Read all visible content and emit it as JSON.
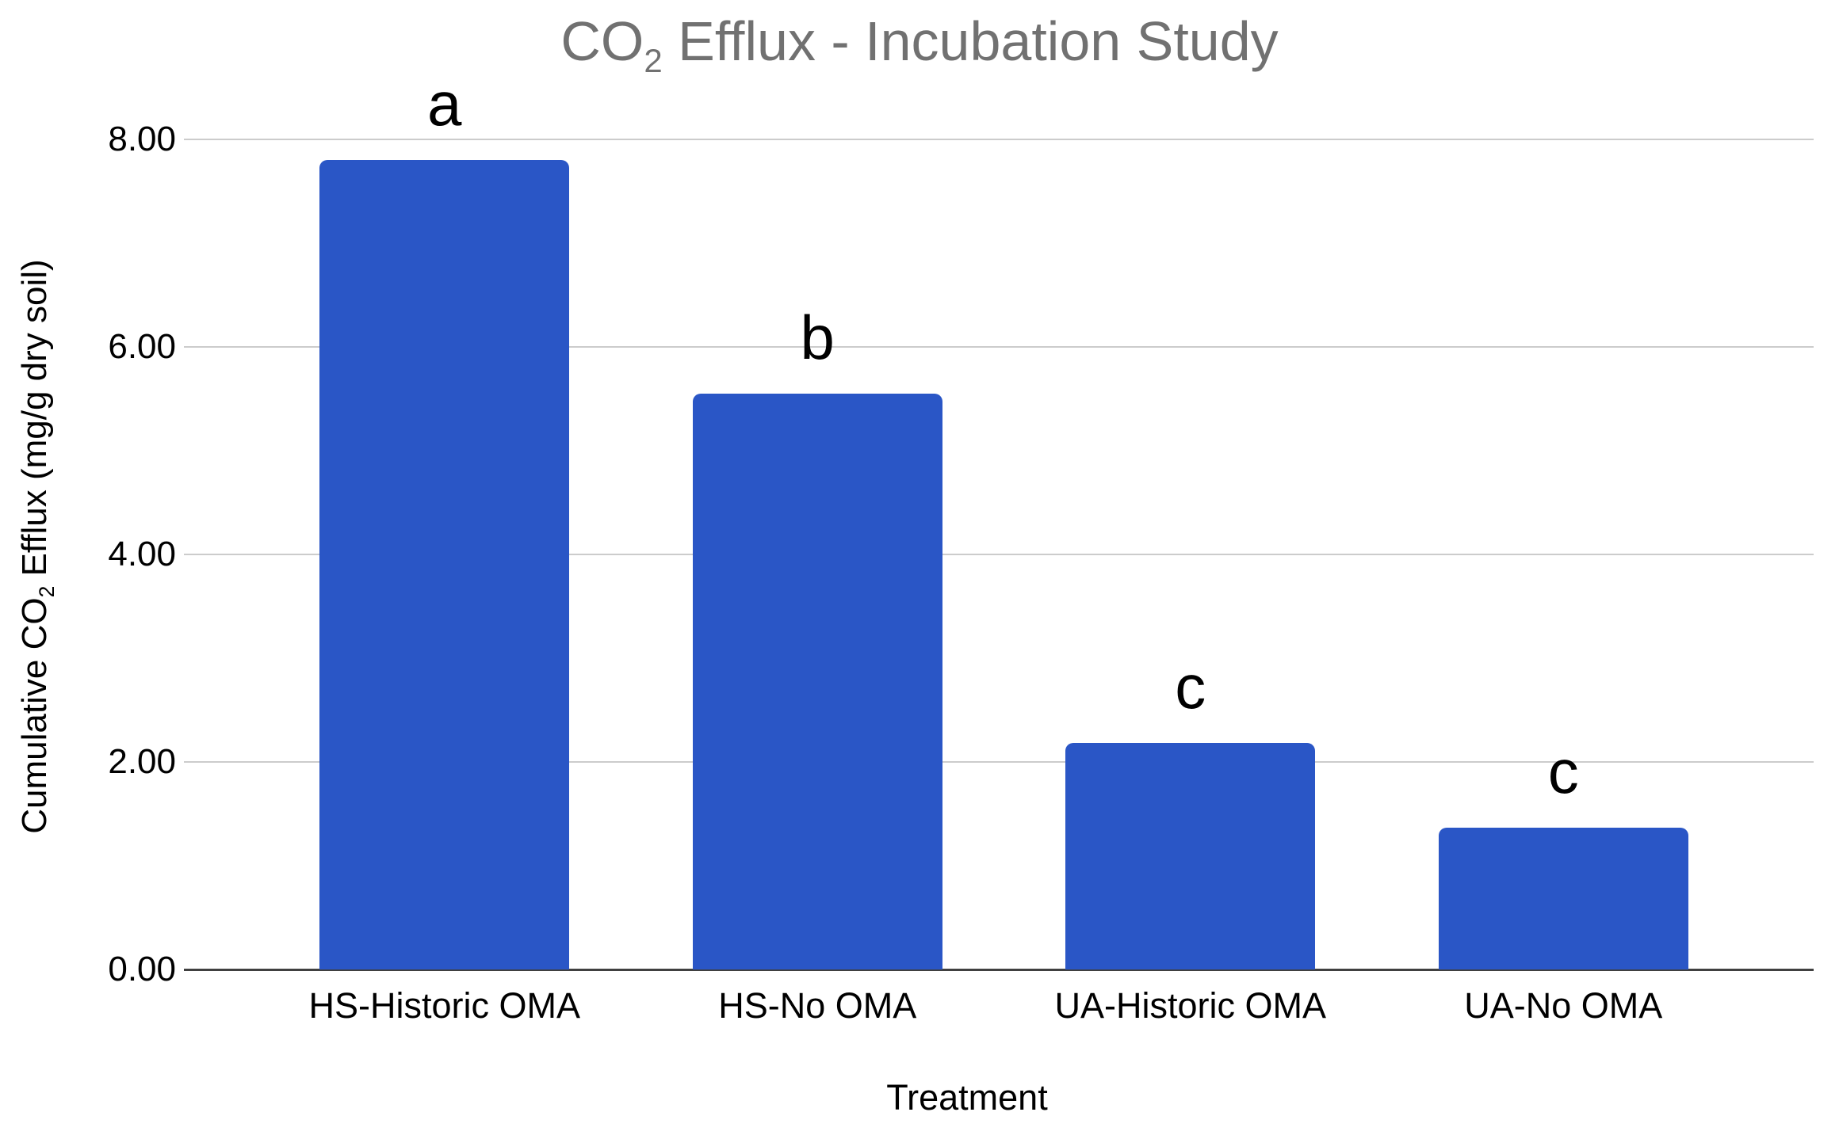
{
  "title": {
    "prefix": "CO",
    "subscript": "2",
    "suffix": " Efflux - Incubation Study",
    "color": "#717171"
  },
  "axes": {
    "x_title": "Treatment",
    "y_title": {
      "prefix": "Cumulative CO",
      "subscript": "2",
      "suffix": " Efflux (mg/g dry soil)"
    }
  },
  "chart_data": {
    "type": "bar",
    "title": "CO₂ Efflux - Incubation Study",
    "xlabel": "Treatment",
    "ylabel": "Cumulative CO₂ Efflux (mg/g dry soil)",
    "categories": [
      "HS-Historic OMA",
      "HS-No OMA",
      "UA-Historic OMA",
      "UA-No OMA"
    ],
    "values": [
      7.8,
      5.55,
      2.18,
      1.37
    ],
    "bar_labels": [
      "a",
      "b",
      "c",
      "c"
    ],
    "ylim": [
      0,
      8
    ],
    "yticks": [
      0,
      2,
      4,
      6,
      8
    ],
    "ytick_labels": [
      "0.00",
      "2.00",
      "4.00",
      "6.00",
      "8.00"
    ],
    "grid": true,
    "legend": "none",
    "bar_color": "#2a56c6",
    "gridline_color": "#cccccc",
    "axis_line_color": "#404040",
    "text_color": "#000000",
    "title_color": "#717171"
  }
}
